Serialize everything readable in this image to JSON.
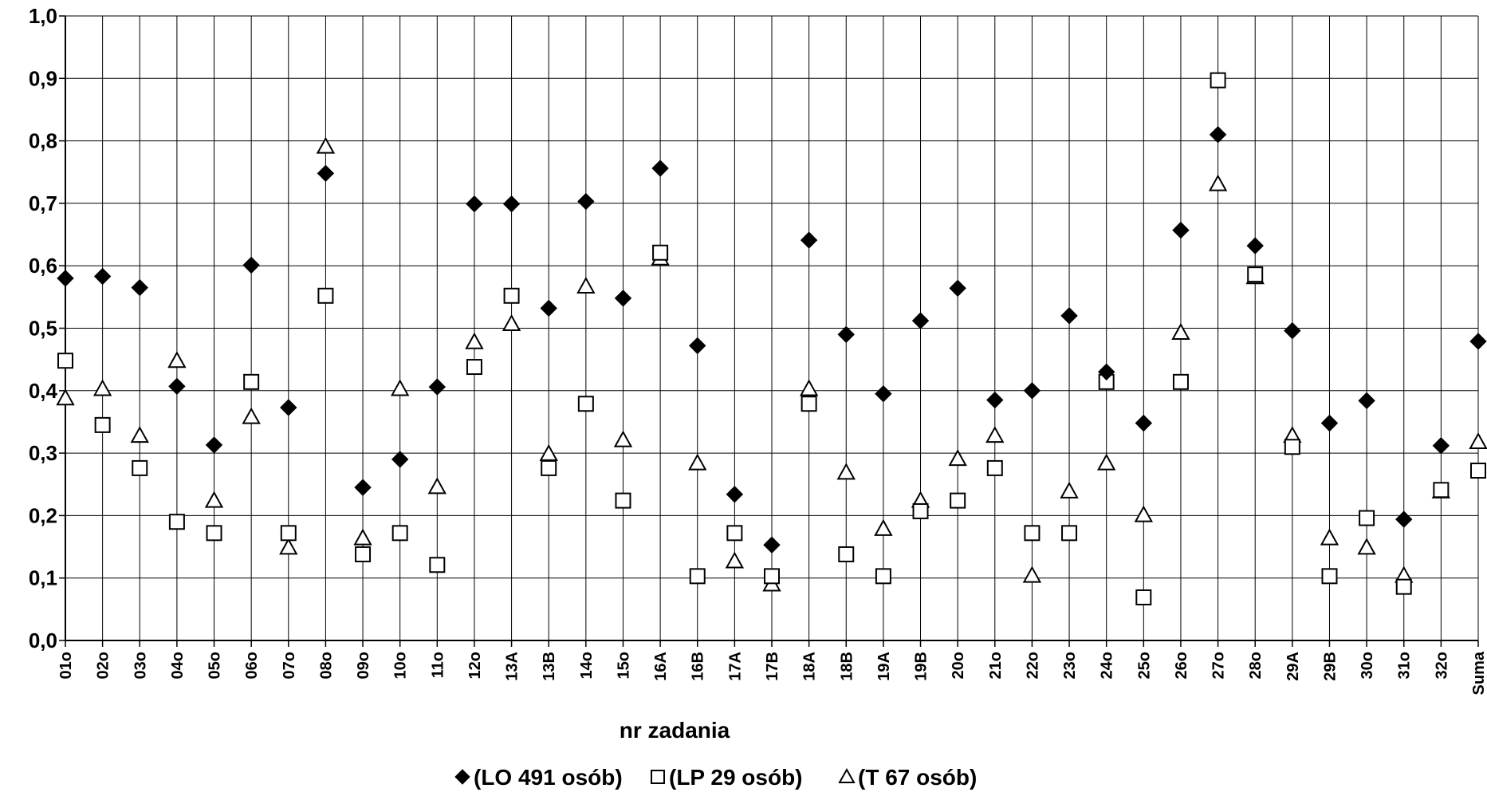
{
  "chart_data": {
    "type": "scatter",
    "title": "",
    "xlabel": "nr zadania",
    "ylabel": "",
    "ylim": [
      0,
      1
    ],
    "y_ticks": [
      "0,0",
      "0,1",
      "0,2",
      "0,3",
      "0,4",
      "0,5",
      "0,6",
      "0,7",
      "0,8",
      "0,9",
      "1,0"
    ],
    "grid": "on",
    "legend_position": "bottom",
    "categories": [
      "01o",
      "02o",
      "03o",
      "04o",
      "05o",
      "06o",
      "07o",
      "08o",
      "09o",
      "10o",
      "11o",
      "12o",
      "13A",
      "13B",
      "14o",
      "15o",
      "16A",
      "16B",
      "17A",
      "17B",
      "18A",
      "18B",
      "19A",
      "19B",
      "20o",
      "21o",
      "22o",
      "23o",
      "24o",
      "25o",
      "26o",
      "27o",
      "28o",
      "29A",
      "29B",
      "30o",
      "31o",
      "32o",
      "Suma"
    ],
    "series": [
      {
        "name": "(LO 491 osób)",
        "marker": "diamond-filled",
        "color": "#000000",
        "values": [
          0.58,
          0.583,
          0.565,
          0.407,
          0.313,
          0.601,
          0.373,
          0.748,
          0.245,
          0.29,
          0.406,
          0.699,
          0.699,
          0.532,
          0.703,
          0.548,
          0.756,
          0.472,
          0.234,
          0.153,
          0.641,
          0.49,
          0.395,
          0.512,
          0.564,
          0.385,
          0.4,
          0.52,
          0.43,
          0.348,
          0.657,
          0.81,
          0.632,
          0.496,
          0.348,
          0.384,
          0.194,
          0.312,
          0.479
        ]
      },
      {
        "name": "(LP 29 osób)",
        "marker": "square-open",
        "color": "#000000",
        "values": [
          0.448,
          0.345,
          0.276,
          0.19,
          0.172,
          0.414,
          0.172,
          0.552,
          0.138,
          0.172,
          0.121,
          0.438,
          0.552,
          0.276,
          0.379,
          0.224,
          0.621,
          0.103,
          0.172,
          0.103,
          0.379,
          0.138,
          0.103,
          0.207,
          0.224,
          0.276,
          0.172,
          0.172,
          0.414,
          0.069,
          0.414,
          0.897,
          0.586,
          0.31,
          0.103,
          0.196,
          0.086,
          0.241,
          0.272
        ]
      },
      {
        "name": "(T 67 osób)",
        "marker": "triangle-open",
        "color": "#000000",
        "values": [
          0.388,
          0.403,
          0.328,
          0.448,
          0.224,
          0.358,
          0.149,
          0.791,
          0.164,
          0.403,
          0.246,
          0.478,
          0.507,
          0.299,
          0.567,
          0.321,
          0.612,
          0.284,
          0.127,
          0.09,
          0.403,
          0.269,
          0.179,
          0.224,
          0.291,
          0.328,
          0.104,
          0.239,
          0.284,
          0.201,
          0.493,
          0.731,
          0.582,
          0.328,
          0.164,
          0.149,
          0.104,
          0.239,
          0.318
        ]
      }
    ]
  }
}
